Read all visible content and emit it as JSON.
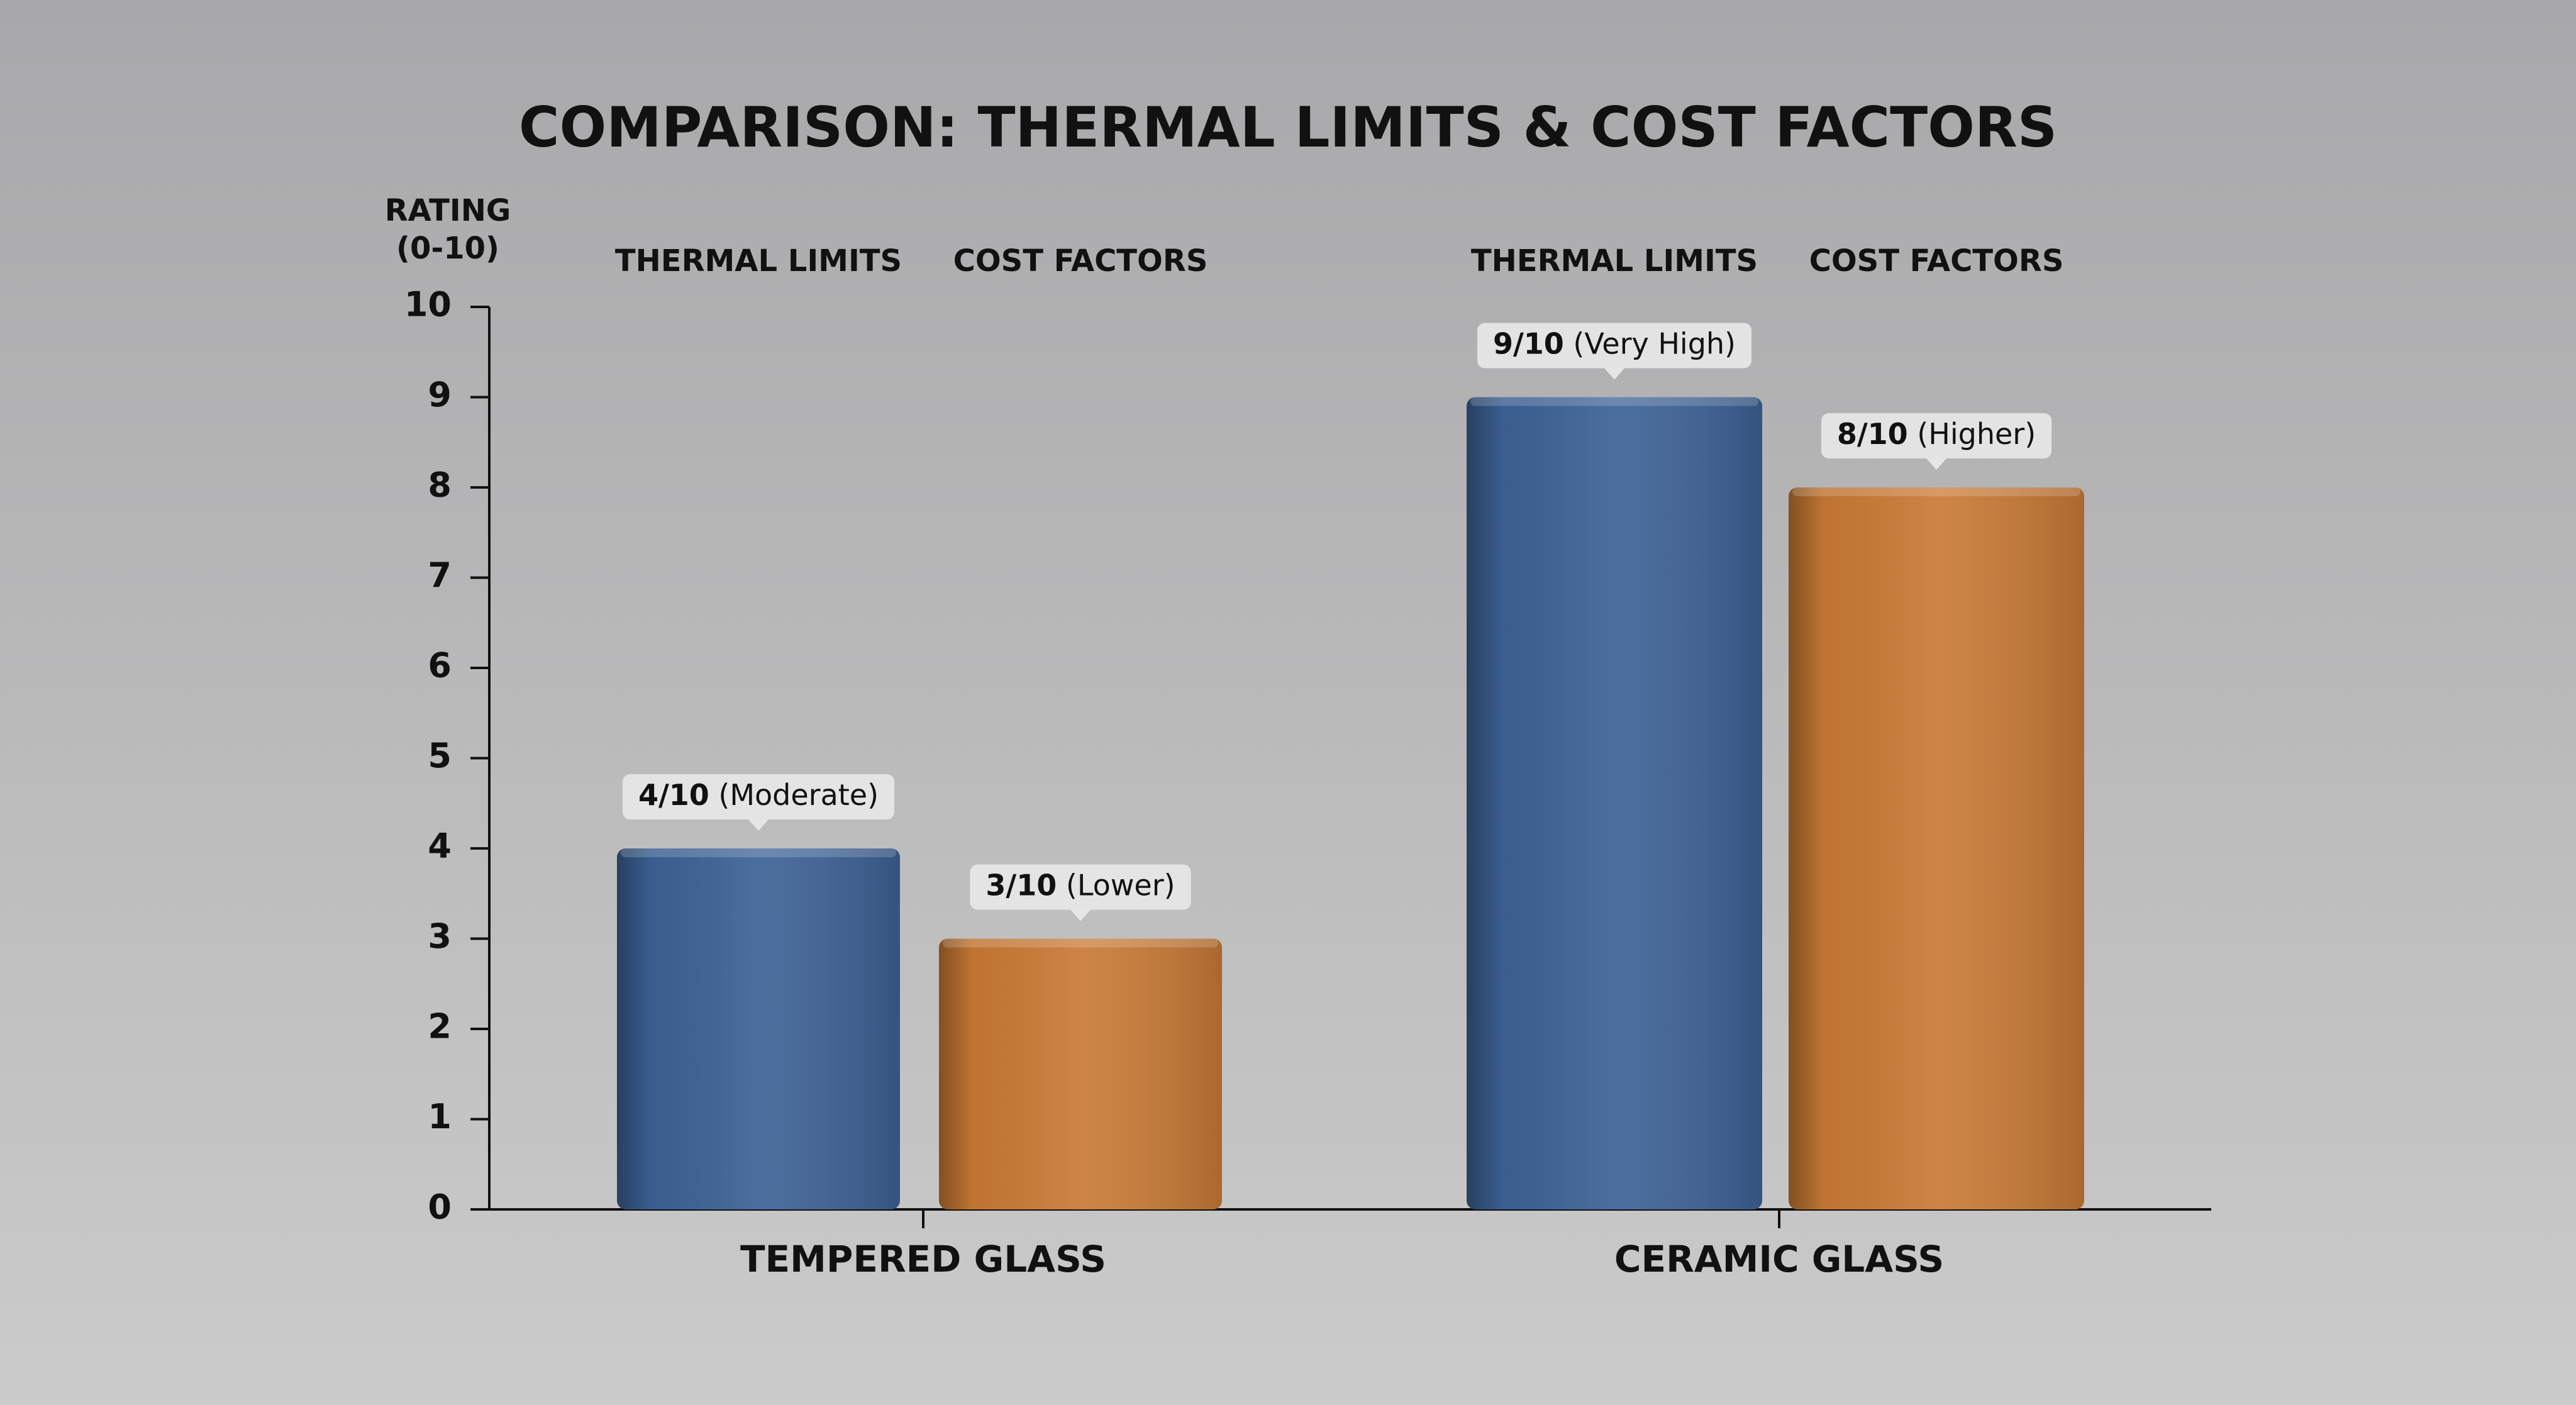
{
  "chart_data": {
    "type": "bar",
    "title": "COMPARISON: THERMAL LIMITS & COST FACTORS",
    "y_label": "RATING (0-10)",
    "categories": [
      "TEMPERED GLASS",
      "CERAMIC GLASS"
    ],
    "series": [
      {
        "name": "THERMAL LIMITS",
        "color": "#3d6296",
        "values": [
          4,
          9
        ],
        "value_labels": [
          "4/10 (Moderate)",
          "9/10 (Very High)"
        ]
      },
      {
        "name": "COST FACTORS",
        "color": "#c97a35",
        "values": [
          3,
          8
        ],
        "value_labels": [
          "3/10 (Lower)",
          "8/10 (Higher)"
        ]
      }
    ],
    "ylim": [
      0,
      10
    ],
    "yticks": [
      0,
      1,
      2,
      3,
      4,
      5,
      6,
      7,
      8,
      9,
      10
    ]
  }
}
